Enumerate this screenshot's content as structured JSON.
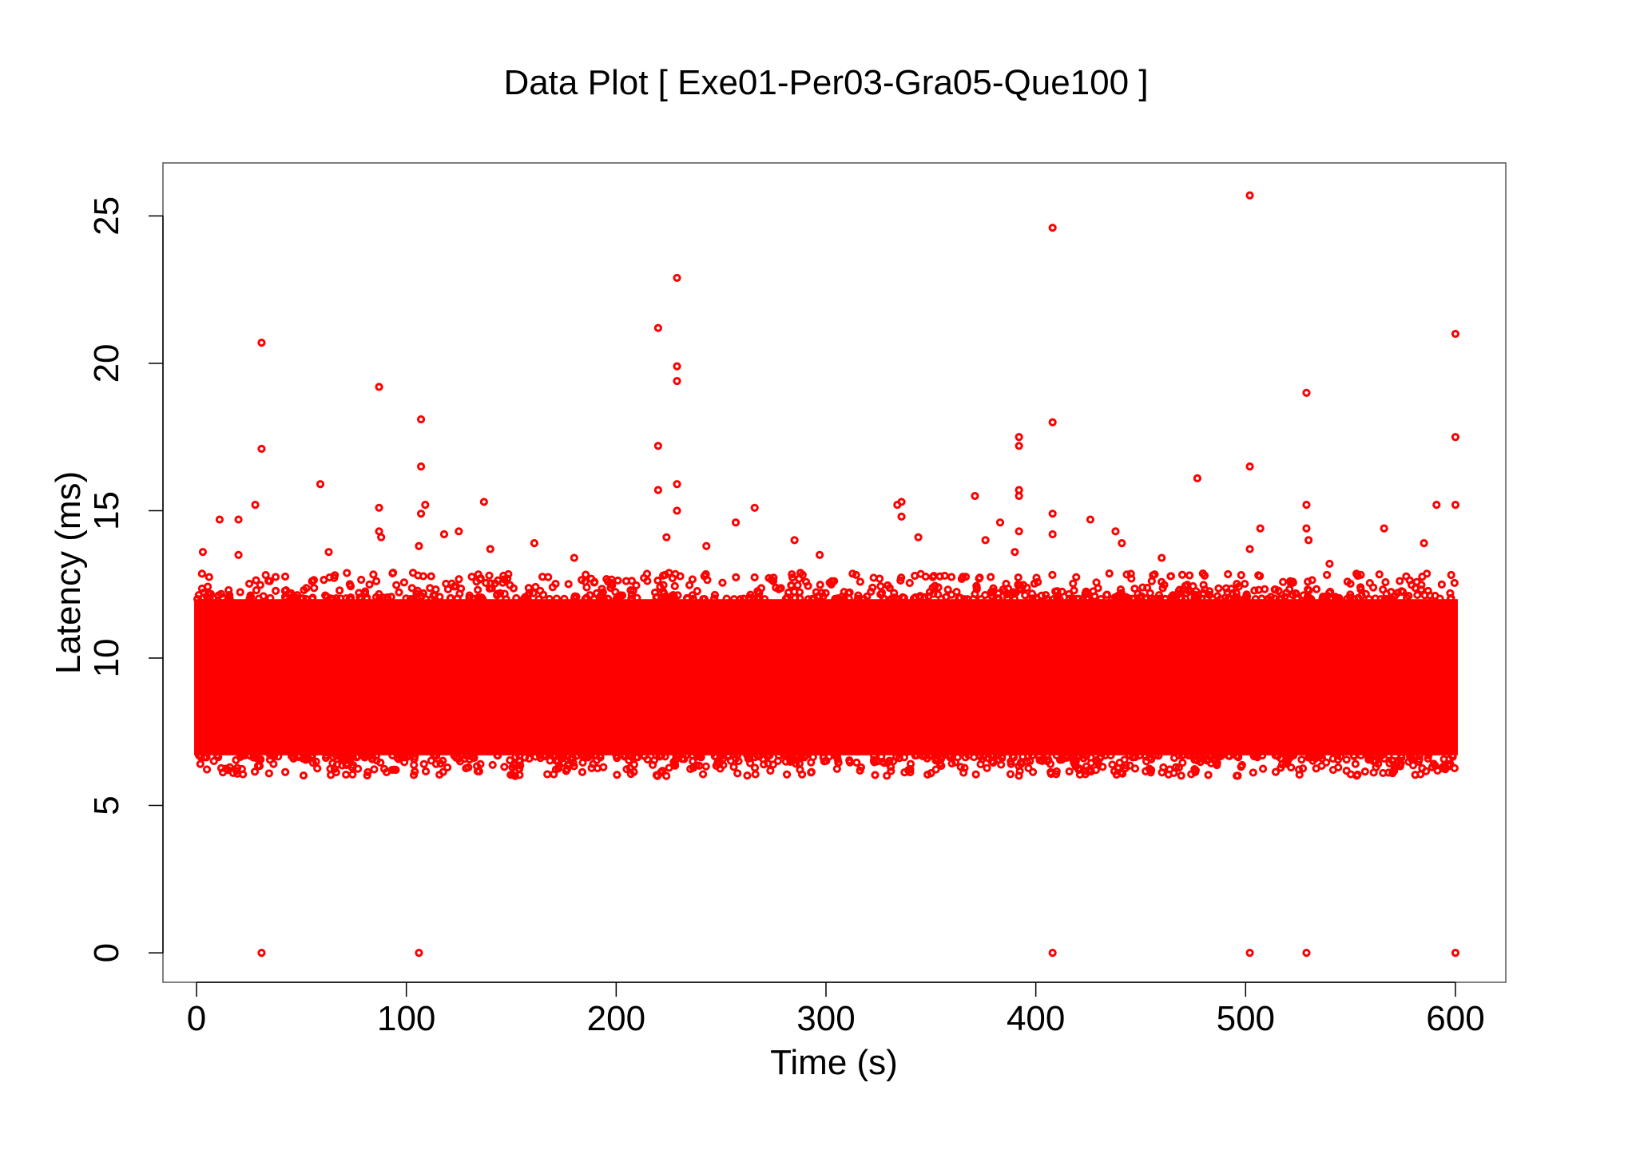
{
  "chart_data": {
    "type": "scatter",
    "title": "Data Plot [ Exe01-Per03-Gra05-Que100 ]",
    "xlabel": "Time (s)",
    "ylabel": "Latency (ms)",
    "xlim": [
      -16,
      624
    ],
    "ylim": [
      -1,
      26.8
    ],
    "xticks": [
      0,
      100,
      200,
      300,
      400,
      500,
      600
    ],
    "yticks": [
      0,
      5,
      10,
      15,
      20,
      25
    ],
    "xtick_labels": [
      "0",
      "100",
      "200",
      "300",
      "400",
      "500",
      "600"
    ],
    "ytick_labels": [
      "0",
      "5",
      "10",
      "15",
      "20",
      "25"
    ],
    "grid": false,
    "legend": "none",
    "marker_color": "#ff0000",
    "dense_band": {
      "x_range": [
        0,
        600
      ],
      "y_core_range": [
        6.7,
        12.0
      ],
      "y_extended_range": [
        6.0,
        12.5
      ],
      "description_points_count_estimate": 60000
    },
    "series": [
      {
        "values": [
          [
            31,
            0
          ],
          [
            106,
            0
          ],
          [
            408,
            0
          ],
          [
            502,
            0
          ],
          [
            529,
            0
          ],
          [
            600,
            0
          ],
          [
            502,
            25.7
          ],
          [
            408,
            24.6
          ],
          [
            229,
            22.9
          ],
          [
            220,
            21.2
          ],
          [
            600,
            21.0
          ],
          [
            31,
            20.7
          ],
          [
            229,
            19.9
          ],
          [
            229,
            19.4
          ],
          [
            87,
            19.2
          ],
          [
            529,
            19.0
          ],
          [
            107,
            18.1
          ],
          [
            408,
            18.0
          ],
          [
            392,
            17.5
          ],
          [
            600,
            17.5
          ],
          [
            392,
            17.2
          ],
          [
            220,
            17.2
          ],
          [
            31,
            17.1
          ],
          [
            502,
            16.5
          ],
          [
            107,
            16.5
          ],
          [
            477,
            16.1
          ],
          [
            59,
            15.9
          ],
          [
            229,
            15.9
          ],
          [
            392,
            15.7
          ],
          [
            220,
            15.7
          ],
          [
            392,
            15.5
          ],
          [
            371,
            15.5
          ],
          [
            137,
            15.3
          ],
          [
            336,
            15.3
          ],
          [
            109,
            15.2
          ],
          [
            28,
            15.2
          ],
          [
            334,
            15.2
          ],
          [
            529,
            15.2
          ],
          [
            591,
            15.2
          ],
          [
            87,
            15.1
          ],
          [
            266,
            15.1
          ],
          [
            600,
            15.2
          ],
          [
            408,
            14.9
          ],
          [
            229,
            15.0
          ],
          [
            107,
            14.9
          ],
          [
            336,
            14.8
          ],
          [
            426,
            14.7
          ],
          [
            11,
            14.7
          ],
          [
            20,
            14.7
          ],
          [
            257,
            14.6
          ],
          [
            383,
            14.6
          ],
          [
            529,
            14.4
          ],
          [
            507,
            14.4
          ],
          [
            566,
            14.4
          ],
          [
            438,
            14.3
          ],
          [
            125,
            14.3
          ],
          [
            87,
            14.3
          ],
          [
            392,
            14.3
          ],
          [
            344,
            14.1
          ],
          [
            224,
            14.1
          ],
          [
            118,
            14.2
          ],
          [
            285,
            14.0
          ],
          [
            88,
            14.1
          ],
          [
            376,
            14.0
          ],
          [
            530,
            14.0
          ],
          [
            408,
            14.2
          ],
          [
            441,
            13.9
          ],
          [
            161,
            13.9
          ],
          [
            106,
            13.8
          ],
          [
            243,
            13.8
          ],
          [
            585,
            13.9
          ],
          [
            3,
            13.6
          ],
          [
            20,
            13.5
          ],
          [
            63,
            13.6
          ],
          [
            140,
            13.7
          ],
          [
            297,
            13.5
          ],
          [
            180,
            13.4
          ],
          [
            460,
            13.4
          ],
          [
            502,
            13.7
          ],
          [
            540,
            13.2
          ],
          [
            390,
            13.6
          ]
        ]
      }
    ]
  }
}
